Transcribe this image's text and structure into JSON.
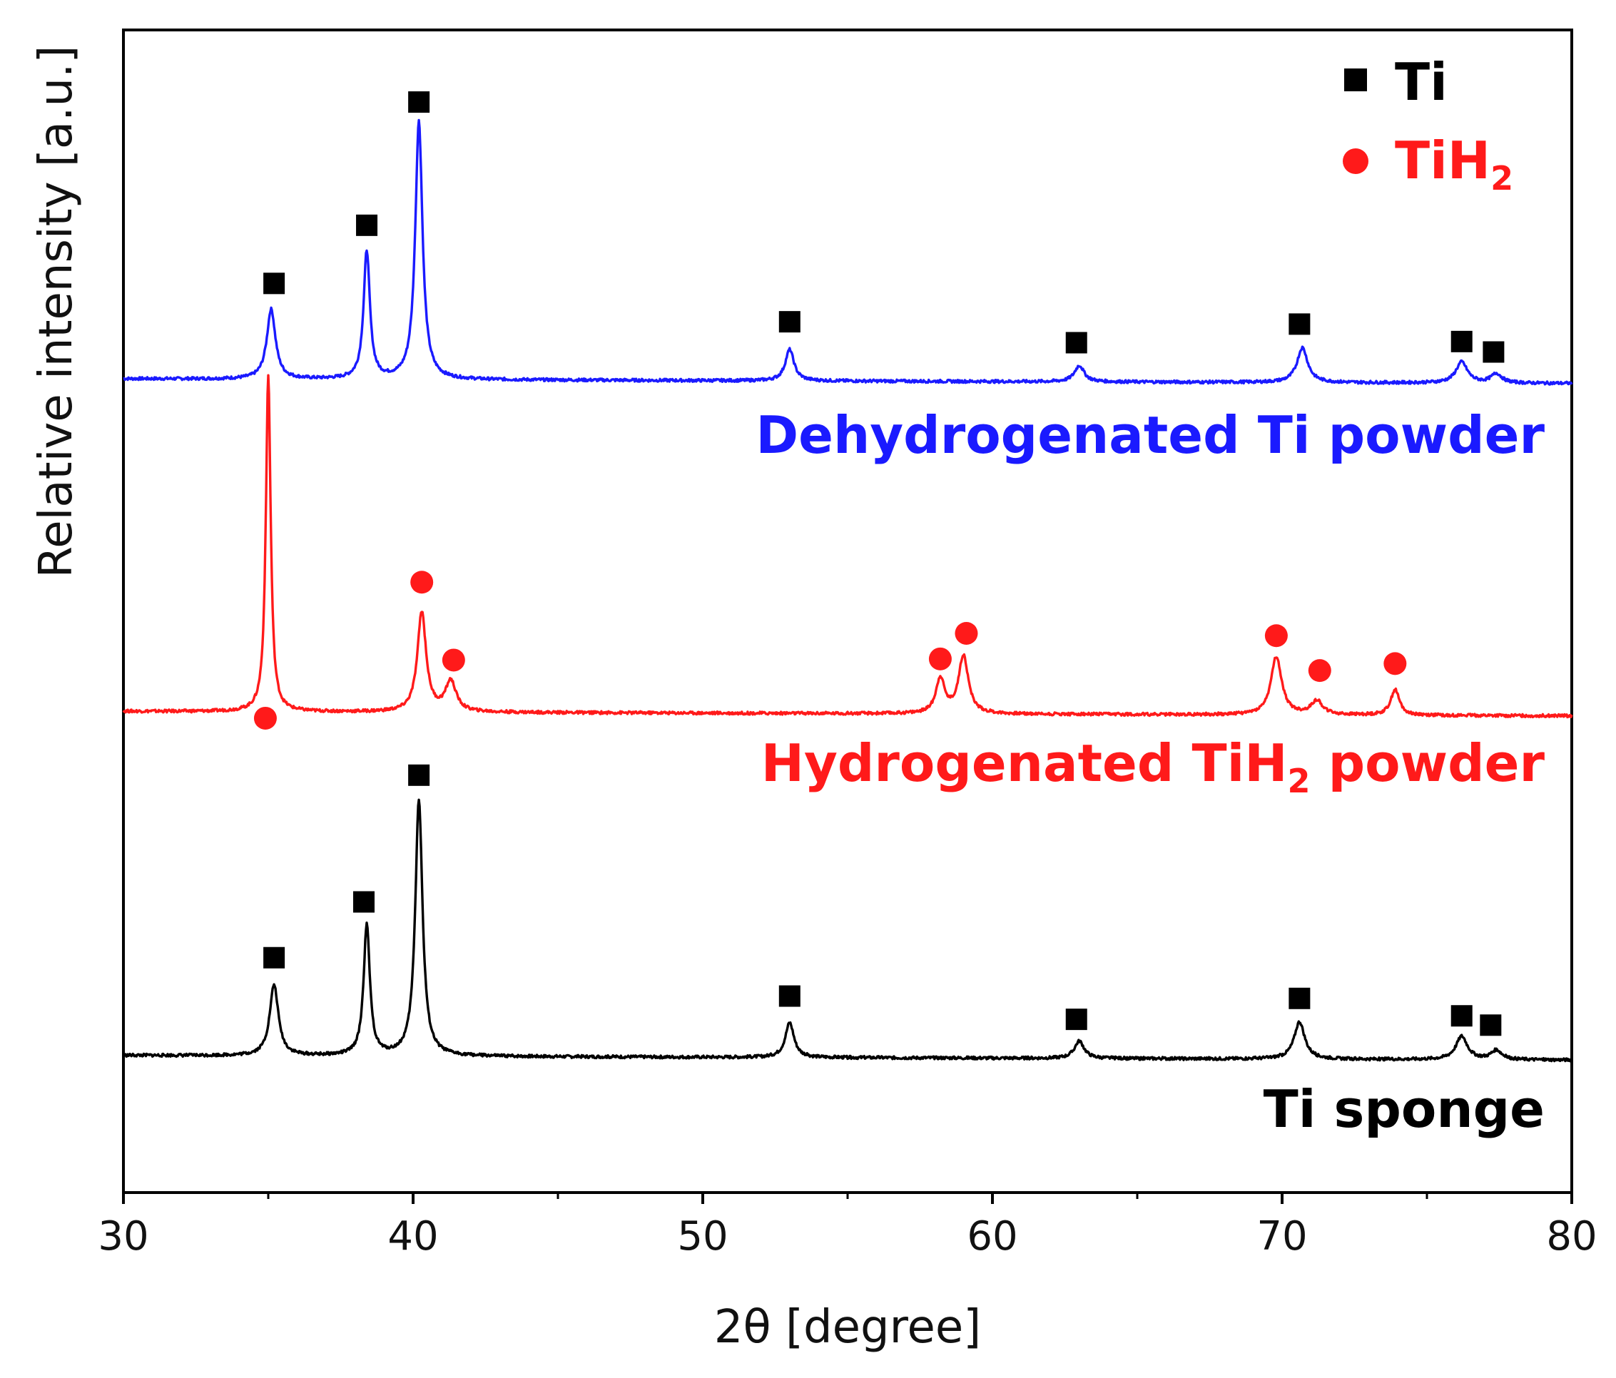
{
  "chart_data": {
    "type": "line",
    "title": "",
    "xlabel": "2θ [degree]",
    "ylabel": "Relative intensity [a.u.]",
    "xlim": [
      30,
      80
    ],
    "x_ticks": [
      30,
      40,
      50,
      60,
      70,
      80
    ],
    "x_tick_labels": [
      "30",
      "40",
      "50",
      "60",
      "70",
      "80"
    ],
    "y_ticks_shown": false,
    "legend_position": "top-right",
    "legend": [
      {
        "marker": "square",
        "color": "#000000",
        "label": "Ti",
        "sub": ""
      },
      {
        "marker": "circle",
        "color": "#ff1a1a",
        "label": "TiH",
        "sub": "2"
      }
    ],
    "series": [
      {
        "name": "Dehydrogenated Ti powder",
        "label_main": "Dehydrogenated Ti powder",
        "label_sub": "",
        "label_tail": "",
        "color": "#1a1aff",
        "baseline": 0.7,
        "peaks": [
          {
            "x": 35.1,
            "h": 0.06,
            "w": 0.18
          },
          {
            "x": 38.4,
            "h": 0.11,
            "w": 0.13
          },
          {
            "x": 40.2,
            "h": 0.222,
            "w": 0.15
          },
          {
            "x": 53.0,
            "h": 0.027,
            "w": 0.18
          },
          {
            "x": 63.0,
            "h": 0.014,
            "w": 0.2
          },
          {
            "x": 70.7,
            "h": 0.03,
            "w": 0.22
          },
          {
            "x": 76.2,
            "h": 0.018,
            "w": 0.24
          },
          {
            "x": 77.4,
            "h": 0.008,
            "w": 0.22
          }
        ],
        "markers": [
          {
            "x": 35.2,
            "y": 0.782,
            "phase": "Ti"
          },
          {
            "x": 38.4,
            "y": 0.832,
            "phase": "Ti"
          },
          {
            "x": 40.2,
            "y": 0.938,
            "phase": "Ti"
          },
          {
            "x": 53.0,
            "y": 0.749,
            "phase": "Ti"
          },
          {
            "x": 62.9,
            "y": 0.731,
            "phase": "Ti"
          },
          {
            "x": 70.6,
            "y": 0.747,
            "phase": "Ti"
          },
          {
            "x": 76.2,
            "y": 0.732,
            "phase": "Ti"
          },
          {
            "x": 77.3,
            "y": 0.723,
            "phase": "Ti"
          }
        ]
      },
      {
        "name": "Hydrogenated TiH2 powder",
        "label_main": "Hydrogenated TiH",
        "label_sub": "2",
        "label_tail": " powder",
        "color": "#ff1a1a",
        "baseline": 0.414,
        "peaks": [
          {
            "x": 35.0,
            "h": 0.29,
            "w": 0.1
          },
          {
            "x": 40.3,
            "h": 0.086,
            "w": 0.18
          },
          {
            "x": 41.3,
            "h": 0.026,
            "w": 0.22
          },
          {
            "x": 58.2,
            "h": 0.03,
            "w": 0.18
          },
          {
            "x": 59.0,
            "h": 0.05,
            "w": 0.2
          },
          {
            "x": 69.8,
            "h": 0.05,
            "w": 0.22
          },
          {
            "x": 71.2,
            "h": 0.012,
            "w": 0.24
          },
          {
            "x": 73.9,
            "h": 0.022,
            "w": 0.18
          }
        ],
        "markers": [
          {
            "x": 34.9,
            "y": 0.408,
            "phase": "TiH2"
          },
          {
            "x": 40.3,
            "y": 0.525,
            "phase": "TiH2"
          },
          {
            "x": 41.4,
            "y": 0.458,
            "phase": "TiH2"
          },
          {
            "x": 58.2,
            "y": 0.459,
            "phase": "TiH2"
          },
          {
            "x": 59.1,
            "y": 0.481,
            "phase": "TiH2"
          },
          {
            "x": 69.8,
            "y": 0.479,
            "phase": "TiH2"
          },
          {
            "x": 71.3,
            "y": 0.449,
            "phase": "TiH2"
          },
          {
            "x": 73.9,
            "y": 0.455,
            "phase": "TiH2"
          }
        ]
      },
      {
        "name": "Ti sponge",
        "label_main": "Ti sponge",
        "label_sub": "",
        "label_tail": "",
        "color": "#000000",
        "baseline": 0.118,
        "peaks": [
          {
            "x": 35.2,
            "h": 0.061,
            "w": 0.18
          },
          {
            "x": 38.4,
            "h": 0.112,
            "w": 0.13
          },
          {
            "x": 40.2,
            "h": 0.221,
            "w": 0.15
          },
          {
            "x": 53.0,
            "h": 0.03,
            "w": 0.18
          },
          {
            "x": 63.0,
            "h": 0.015,
            "w": 0.2
          },
          {
            "x": 70.6,
            "h": 0.032,
            "w": 0.22
          },
          {
            "x": 76.2,
            "h": 0.02,
            "w": 0.24
          },
          {
            "x": 77.4,
            "h": 0.008,
            "w": 0.22
          }
        ],
        "markers": [
          {
            "x": 35.2,
            "y": 0.202,
            "phase": "Ti"
          },
          {
            "x": 38.3,
            "y": 0.25,
            "phase": "Ti"
          },
          {
            "x": 40.2,
            "y": 0.359,
            "phase": "Ti"
          },
          {
            "x": 53.0,
            "y": 0.169,
            "phase": "Ti"
          },
          {
            "x": 62.9,
            "y": 0.149,
            "phase": "Ti"
          },
          {
            "x": 70.6,
            "y": 0.167,
            "phase": "Ti"
          },
          {
            "x": 76.2,
            "y": 0.152,
            "phase": "Ti"
          },
          {
            "x": 77.2,
            "y": 0.144,
            "phase": "Ti"
          }
        ]
      }
    ]
  }
}
